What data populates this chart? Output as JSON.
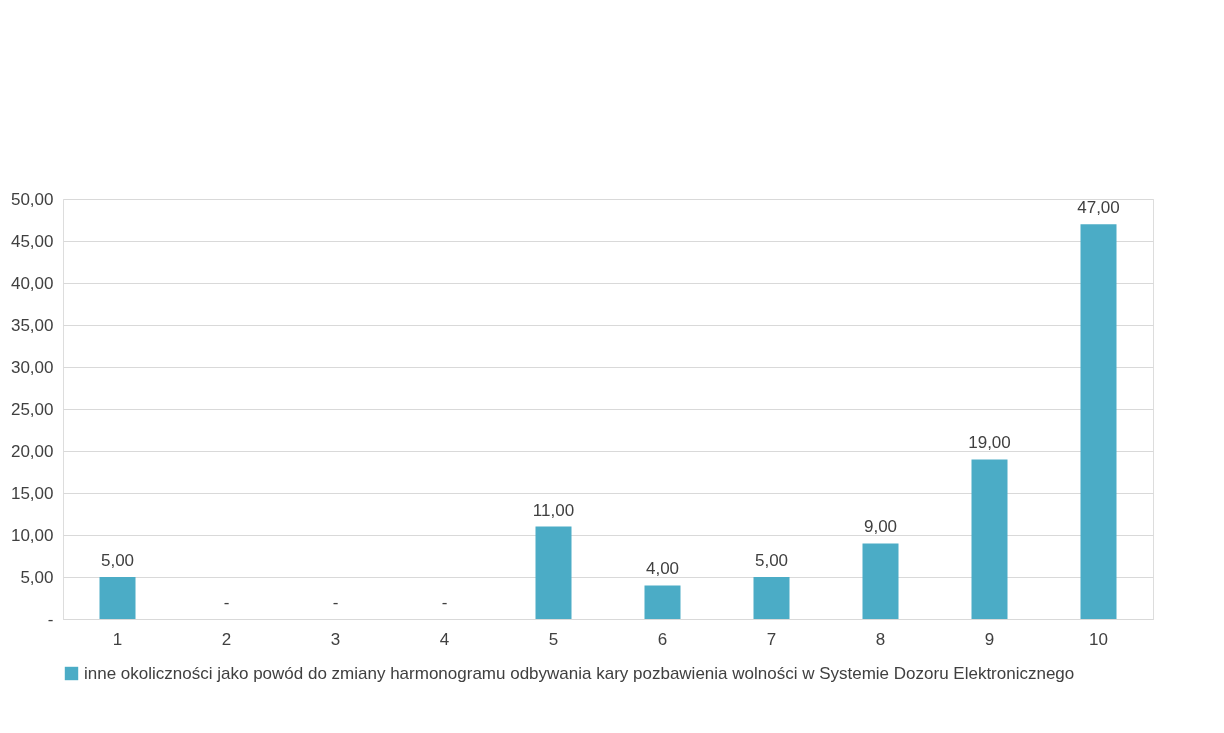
{
  "chart_data": {
    "type": "bar",
    "categories": [
      "1",
      "2",
      "3",
      "4",
      "5",
      "6",
      "7",
      "8",
      "9",
      "10"
    ],
    "series": [
      {
        "name": "inne okoliczności  jako powód do zmiany harmonogramu odbywania kary pozbawienia wolności w Systemie Dozoru Elektronicznego",
        "color": "#4bacc6",
        "values": [
          5,
          0,
          0,
          0,
          11,
          4,
          5,
          9,
          19,
          47
        ],
        "value_labels": [
          "5,00",
          "-",
          "-",
          "-",
          "11,00",
          "4,00",
          "5,00",
          "9,00",
          "19,00",
          "47,00"
        ]
      }
    ],
    "ylim": [
      0,
      50
    ],
    "yticks": [
      {
        "value": 0,
        "label": "-"
      },
      {
        "value": 5,
        "label": "5,00"
      },
      {
        "value": 10,
        "label": "10,00"
      },
      {
        "value": 15,
        "label": "15,00"
      },
      {
        "value": 20,
        "label": "20,00"
      },
      {
        "value": 25,
        "label": "25,00"
      },
      {
        "value": 30,
        "label": "30,00"
      },
      {
        "value": 35,
        "label": "35,00"
      },
      {
        "value": 40,
        "label": "40,00"
      },
      {
        "value": 45,
        "label": "45,00"
      },
      {
        "value": 50,
        "label": "50,00"
      }
    ],
    "grid": "y",
    "legend": "bottom"
  }
}
